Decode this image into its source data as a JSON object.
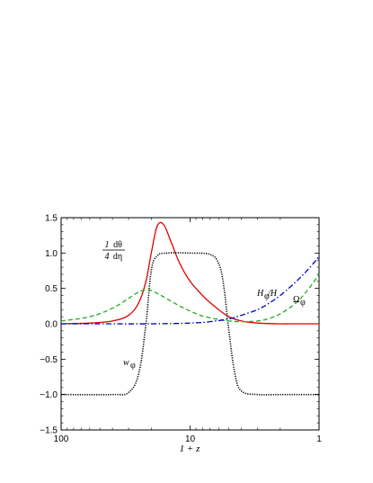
{
  "chart_data": {
    "type": "line",
    "title": "",
    "xlabel": "1 + z",
    "ylabel": "",
    "x_scale": "log",
    "x_reversed": true,
    "xlim": [
      100,
      1
    ],
    "ylim": [
      -1.5,
      1.5
    ],
    "grid": false,
    "x_ticks": [
      {
        "value": 100,
        "label": "100"
      },
      {
        "value": 10,
        "label": "10"
      },
      {
        "value": 1,
        "label": "1"
      }
    ],
    "y_ticks": [
      {
        "value": -1.5,
        "label": "−1.5"
      },
      {
        "value": -1.0,
        "label": "−1.0"
      },
      {
        "value": -0.5,
        "label": "−0.5"
      },
      {
        "value": 0.0,
        "label": "0.0"
      },
      {
        "value": 0.5,
        "label": "0.5"
      },
      {
        "value": 1.0,
        "label": "1.0"
      },
      {
        "value": 1.5,
        "label": "1.5"
      }
    ],
    "series": [
      {
        "key": "dtheta",
        "color": "#e00000",
        "dash": "solid",
        "x": [
          100,
          60,
          40,
          30,
          25,
          22,
          20,
          18,
          16,
          14,
          12,
          10,
          8,
          7,
          6,
          5,
          4,
          3,
          2,
          1.5,
          1
        ],
        "y": [
          0.0,
          0.01,
          0.04,
          0.12,
          0.3,
          0.6,
          1.0,
          1.38,
          1.4,
          1.15,
          0.85,
          0.6,
          0.4,
          0.3,
          0.2,
          0.1,
          0.04,
          0.01,
          0.0,
          0.0,
          0.0
        ]
      },
      {
        "key": "w_phi",
        "color": "#000000",
        "dash": "dotted",
        "x": [
          100,
          40,
          30,
          25,
          22,
          20,
          18,
          15,
          10,
          7,
          6,
          5.5,
          5,
          4.5,
          4,
          3,
          2,
          1
        ],
        "y": [
          -1.0,
          -1.0,
          -0.97,
          -0.7,
          0.0,
          0.75,
          0.96,
          1.0,
          1.0,
          0.98,
          0.85,
          0.55,
          -0.1,
          -0.7,
          -0.95,
          -1.0,
          -1.0,
          -1.0
        ]
      },
      {
        "key": "omega_phi",
        "color": "#22aa22",
        "dash": "dashed",
        "x": [
          100,
          60,
          40,
          30,
          25,
          22,
          20,
          18,
          15,
          12,
          10,
          8,
          6,
          5,
          4,
          3,
          2.5,
          2,
          1.5,
          1.2,
          1
        ],
        "y": [
          0.04,
          0.1,
          0.22,
          0.36,
          0.45,
          0.48,
          0.47,
          0.43,
          0.35,
          0.25,
          0.18,
          0.11,
          0.06,
          0.04,
          0.03,
          0.04,
          0.07,
          0.14,
          0.3,
          0.5,
          0.7
        ]
      },
      {
        "key": "h_phi",
        "color": "#0000cc",
        "dash": "dashdot",
        "x": [
          100,
          50,
          20,
          10,
          7,
          5,
          4,
          3,
          2.5,
          2,
          1.5,
          1.2,
          1
        ],
        "y": [
          0.0,
          0.0,
          0.0,
          0.01,
          0.03,
          0.07,
          0.12,
          0.2,
          0.28,
          0.4,
          0.6,
          0.78,
          0.95
        ]
      }
    ],
    "annotations": [
      {
        "key": "dtheta",
        "numerator": "1",
        "denominator": "4",
        "frac_top": "dθ",
        "frac_bottom": "dη"
      },
      {
        "key": "w_phi",
        "base": "w",
        "sub": "φ"
      },
      {
        "key": "omega_phi",
        "base": "Ω",
        "sub": "φ"
      },
      {
        "key": "h_phi",
        "base": "H",
        "sub": "φ",
        "suffix": "/H"
      }
    ]
  }
}
